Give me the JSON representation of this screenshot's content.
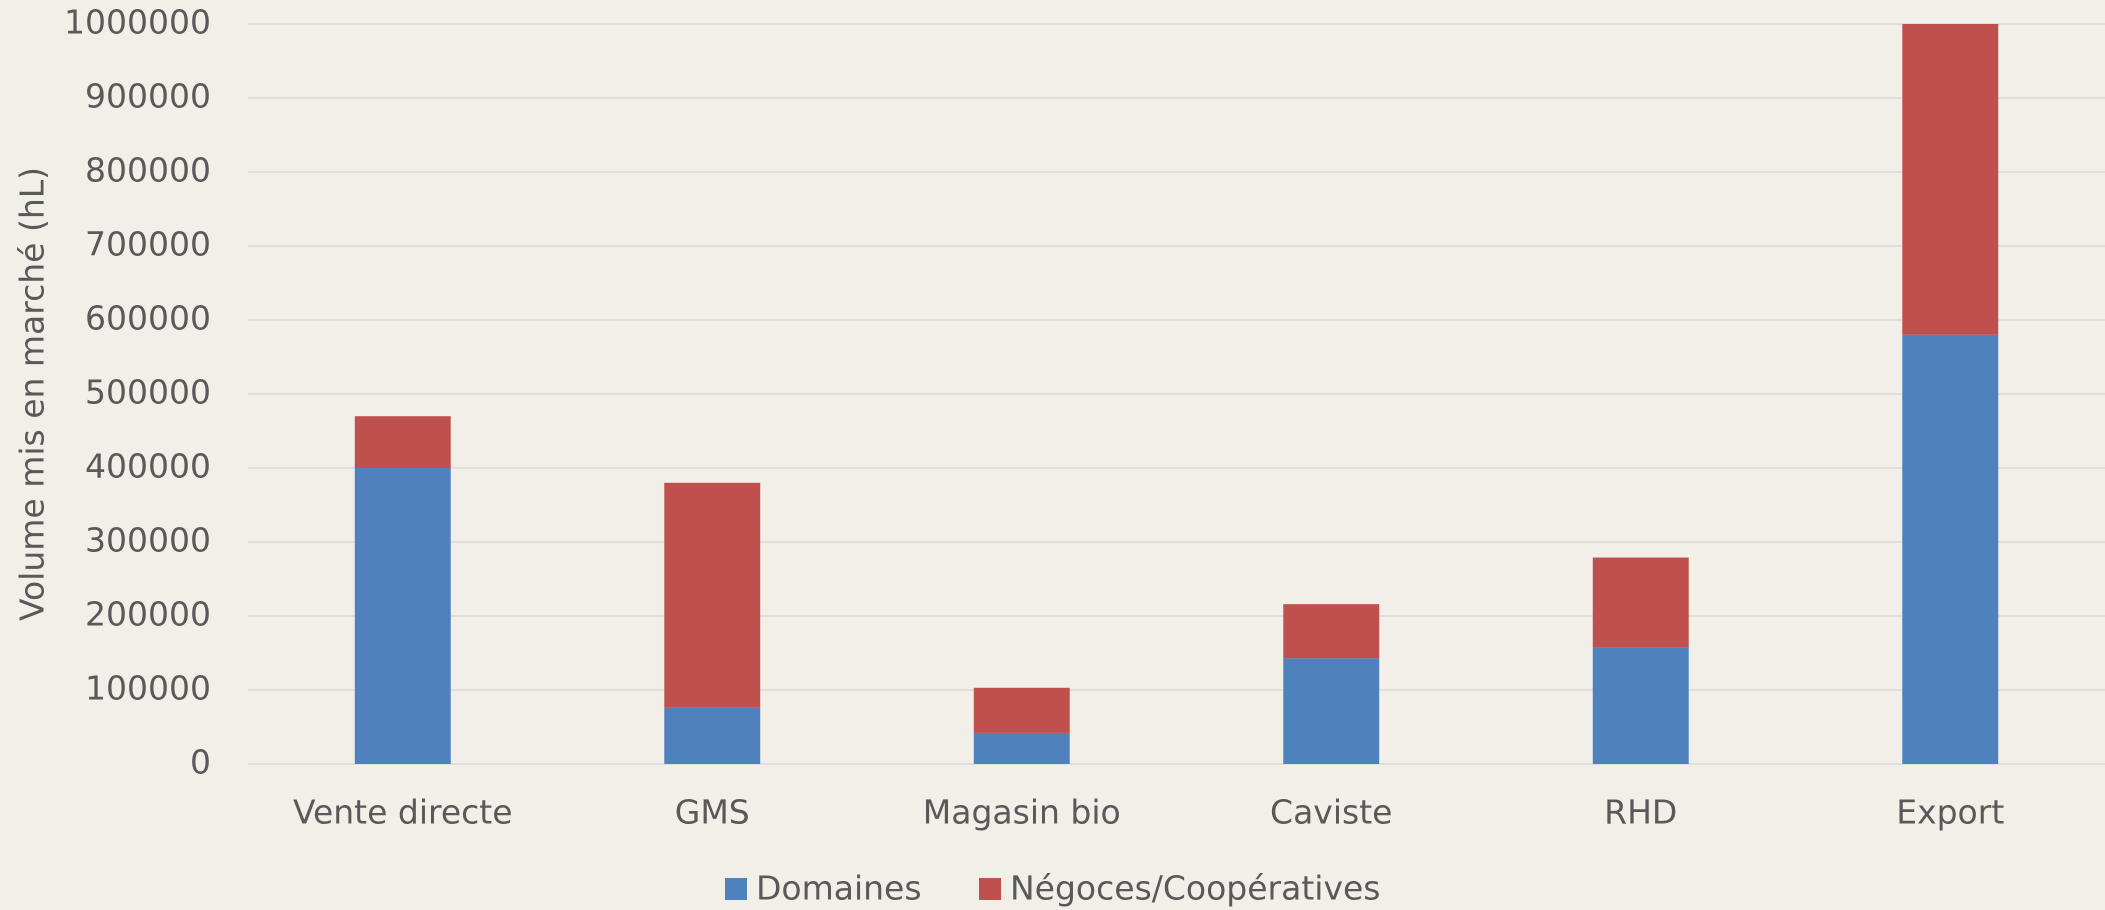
{
  "chart_data": {
    "type": "stacked_bar",
    "ylabel": "Volume mis en marché (hL)",
    "categories": [
      "Vente directe",
      "GMS",
      "Magasin bio",
      "Caviste",
      "RHD",
      "Export"
    ],
    "series": [
      {
        "name": "Domaines",
        "color": "#4f81bd",
        "values": [
          400000,
          76000,
          42000,
          143000,
          158000,
          580000
        ]
      },
      {
        "name": "Négoces/Coopératives",
        "color": "#c0504d",
        "values": [
          70000,
          304000,
          61000,
          73000,
          121000,
          420000
        ]
      }
    ],
    "ylim": [
      0,
      1000000
    ],
    "yticks": [
      0,
      100000,
      200000,
      300000,
      400000,
      500000,
      600000,
      700000,
      800000,
      900000,
      1000000
    ],
    "grid": true,
    "legend": "bottom"
  }
}
